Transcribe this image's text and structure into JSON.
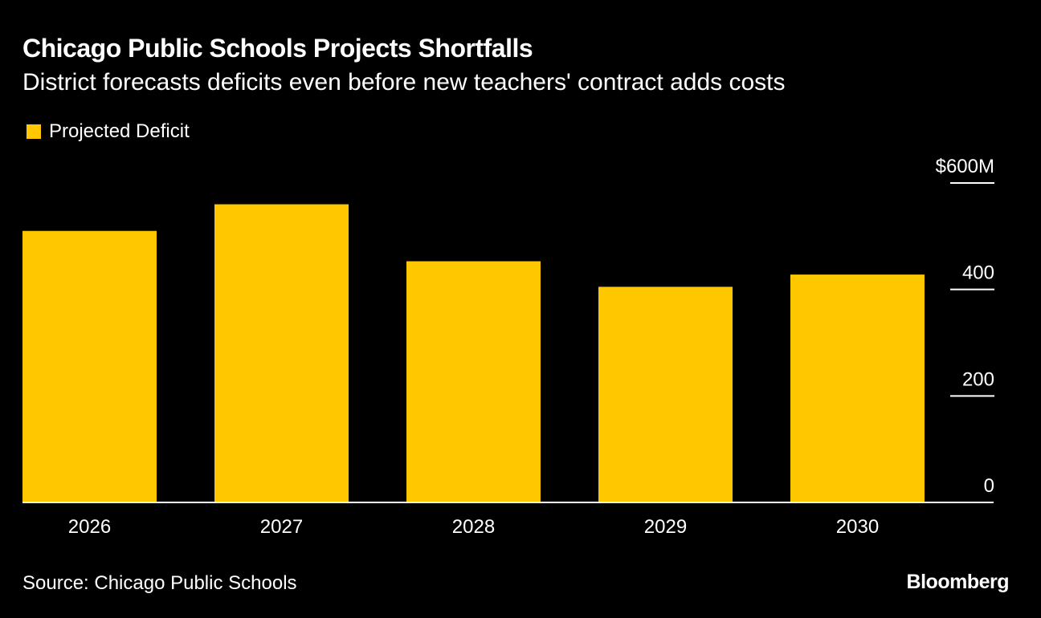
{
  "header": {
    "title": "Chicago Public Schools Projects Shortfalls",
    "subtitle": "District forecasts deficits even before new teachers' contract adds costs"
  },
  "footer": {
    "source": "Source: Chicago Public Schools",
    "brand": "Bloomberg"
  },
  "colors": {
    "background": "#000000",
    "bar": "#ffc700",
    "text": "#ffffff"
  },
  "chart_data": {
    "type": "bar",
    "title": "Chicago Public Schools Projects Shortfalls",
    "subtitle": "District forecasts deficits even before new teachers' contract adds costs",
    "categories": [
      "2026",
      "2027",
      "2028",
      "2029",
      "2030"
    ],
    "series": [
      {
        "name": "Projected Deficit",
        "values": [
          510,
          560,
          453,
          405,
          428
        ]
      }
    ],
    "ylim": [
      0,
      600
    ],
    "y_ticks": [
      {
        "value": 0,
        "label": "0"
      },
      {
        "value": 200,
        "label": "200"
      },
      {
        "value": 400,
        "label": "400"
      },
      {
        "value": 600,
        "label": "$600M"
      }
    ],
    "y_axis_side": "right",
    "legend_position": "top-left",
    "grid": false
  }
}
